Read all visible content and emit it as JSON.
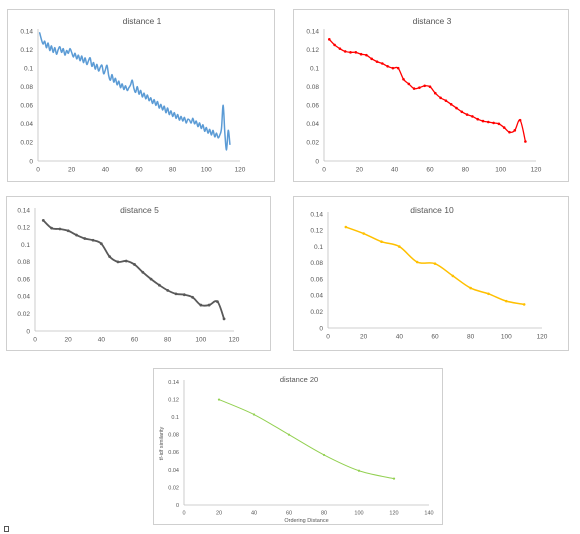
{
  "chart_data": [
    {
      "type": "line",
      "title": "distance 1",
      "xlabel": "",
      "ylabel": "",
      "xlim": [
        0,
        120
      ],
      "ylim": [
        0,
        0.14
      ],
      "x_ticks": [
        "0",
        "20",
        "40",
        "60",
        "80",
        "100",
        "120"
      ],
      "y_ticks": [
        "0",
        "0.02",
        "0.04",
        "0.06",
        "0.08",
        "0.1",
        "0.12",
        "0.14"
      ],
      "grid": false,
      "color": "#5b9bd5",
      "markers": false,
      "series": [
        {
          "x": [
            1,
            2,
            3,
            4,
            5,
            6,
            7,
            8,
            9,
            10,
            11,
            12,
            13,
            14,
            15,
            16,
            17,
            18,
            19,
            20,
            21,
            22,
            23,
            24,
            25,
            26,
            27,
            28,
            29,
            30,
            31,
            32,
            33,
            34,
            35,
            36,
            37,
            38,
            39,
            40,
            41,
            42,
            43,
            44,
            45,
            46,
            47,
            48,
            49,
            50,
            51,
            52,
            53,
            54,
            55,
            56,
            57,
            58,
            59,
            60,
            61,
            62,
            63,
            64,
            65,
            66,
            67,
            68,
            69,
            70,
            71,
            72,
            73,
            74,
            75,
            76,
            77,
            78,
            79,
            80,
            81,
            82,
            83,
            84,
            85,
            86,
            87,
            88,
            89,
            90,
            91,
            92,
            93,
            94,
            95,
            96,
            97,
            98,
            99,
            100,
            101,
            102,
            103,
            104,
            105,
            106,
            107,
            108,
            109,
            110,
            111,
            112,
            113,
            114
          ],
          "y": [
            0.138,
            0.131,
            0.126,
            0.129,
            0.122,
            0.127,
            0.119,
            0.124,
            0.117,
            0.122,
            0.115,
            0.12,
            0.123,
            0.117,
            0.121,
            0.114,
            0.119,
            0.116,
            0.121,
            0.117,
            0.112,
            0.116,
            0.11,
            0.114,
            0.108,
            0.113,
            0.106,
            0.111,
            0.104,
            0.108,
            0.111,
            0.102,
            0.106,
            0.099,
            0.104,
            0.097,
            0.101,
            0.103,
            0.094,
            0.098,
            0.103,
            0.092,
            0.087,
            0.093,
            0.085,
            0.089,
            0.082,
            0.086,
            0.079,
            0.083,
            0.077,
            0.081,
            0.076,
            0.079,
            0.082,
            0.087,
            0.078,
            0.074,
            0.08,
            0.072,
            0.076,
            0.069,
            0.073,
            0.067,
            0.071,
            0.065,
            0.068,
            0.062,
            0.066,
            0.06,
            0.064,
            0.057,
            0.061,
            0.055,
            0.059,
            0.052,
            0.057,
            0.05,
            0.054,
            0.048,
            0.052,
            0.046,
            0.05,
            0.044,
            0.048,
            0.043,
            0.047,
            0.041,
            0.045,
            0.044,
            0.041,
            0.046,
            0.04,
            0.043,
            0.037,
            0.041,
            0.035,
            0.039,
            0.032,
            0.036,
            0.03,
            0.034,
            0.028,
            0.033,
            0.026,
            0.03,
            0.025,
            0.028,
            0.035,
            0.06,
            0.03,
            0.012,
            0.033,
            0.018
          ]
        }
      ]
    },
    {
      "type": "line",
      "title": "distance 3",
      "xlabel": "",
      "ylabel": "",
      "xlim": [
        0,
        120
      ],
      "ylim": [
        0,
        0.14
      ],
      "x_ticks": [
        "0",
        "20",
        "40",
        "60",
        "80",
        "100",
        "120"
      ],
      "y_ticks": [
        "0",
        "0.02",
        "0.04",
        "0.06",
        "0.08",
        "0.1",
        "0.12",
        "0.14"
      ],
      "grid": false,
      "color": "#ff0000",
      "markers": true,
      "series": [
        {
          "x": [
            3,
            6,
            9,
            12,
            15,
            18,
            21,
            24,
            27,
            30,
            33,
            36,
            39,
            42,
            45,
            48,
            51,
            54,
            57,
            60,
            63,
            66,
            69,
            72,
            75,
            78,
            81,
            84,
            87,
            90,
            93,
            96,
            99,
            102,
            105,
            108,
            111,
            114
          ],
          "y": [
            0.131,
            0.125,
            0.121,
            0.118,
            0.117,
            0.117,
            0.115,
            0.114,
            0.11,
            0.107,
            0.105,
            0.102,
            0.1,
            0.1,
            0.088,
            0.083,
            0.078,
            0.079,
            0.081,
            0.08,
            0.073,
            0.068,
            0.065,
            0.061,
            0.057,
            0.053,
            0.05,
            0.048,
            0.045,
            0.043,
            0.042,
            0.041,
            0.04,
            0.036,
            0.031,
            0.033,
            0.044,
            0.021
          ]
        }
      ]
    },
    {
      "type": "line",
      "title": "distance 5",
      "xlabel": "",
      "ylabel": "",
      "xlim": [
        0,
        120
      ],
      "ylim": [
        0,
        0.14
      ],
      "x_ticks": [
        "0",
        "20",
        "40",
        "60",
        "80",
        "100",
        "120"
      ],
      "y_ticks": [
        "0",
        "0.02",
        "0.04",
        "0.06",
        "0.08",
        "0.1",
        "0.12",
        "0.14"
      ],
      "grid": false,
      "color": "#595959",
      "markers": true,
      "series": [
        {
          "x": [
            5,
            10,
            15,
            20,
            25,
            30,
            35,
            40,
            45,
            50,
            55,
            60,
            65,
            70,
            75,
            80,
            85,
            90,
            95,
            100,
            105,
            110,
            114
          ],
          "y": [
            0.128,
            0.119,
            0.118,
            0.116,
            0.111,
            0.107,
            0.105,
            0.101,
            0.086,
            0.08,
            0.081,
            0.077,
            0.068,
            0.06,
            0.053,
            0.047,
            0.043,
            0.042,
            0.039,
            0.03,
            0.03,
            0.034,
            0.014
          ]
        }
      ]
    },
    {
      "type": "line",
      "title": "distance 10",
      "xlabel": "",
      "ylabel": "",
      "xlim": [
        0,
        120
      ],
      "ylim": [
        0,
        0.14
      ],
      "x_ticks": [
        "0",
        "20",
        "40",
        "60",
        "80",
        "100",
        "120"
      ],
      "y_ticks": [
        "0",
        "0.02",
        "0.04",
        "0.06",
        "0.08",
        "0.1",
        "0.12",
        "0.14"
      ],
      "grid": false,
      "color": "#ffc000",
      "markers": true,
      "series": [
        {
          "x": [
            10,
            20,
            30,
            40,
            50,
            60,
            70,
            80,
            90,
            100,
            110
          ],
          "y": [
            0.124,
            0.116,
            0.106,
            0.1,
            0.081,
            0.079,
            0.064,
            0.049,
            0.042,
            0.033,
            0.029
          ]
        }
      ]
    },
    {
      "type": "line",
      "title": "distance 20",
      "xlabel": "Ordering Distance",
      "ylabel": "tf-idf similarity",
      "xlim": [
        0,
        140
      ],
      "ylim": [
        0,
        0.14
      ],
      "x_ticks": [
        "0",
        "20",
        "40",
        "60",
        "80",
        "100",
        "120",
        "140"
      ],
      "y_ticks": [
        "0",
        "0.02",
        "0.04",
        "0.06",
        "0.08",
        "0.1",
        "0.12",
        "0.14"
      ],
      "grid": false,
      "color": "#92d050",
      "markers": true,
      "series": [
        {
          "x": [
            20,
            40,
            60,
            80,
            100,
            120
          ],
          "y": [
            0.12,
            0.103,
            0.08,
            0.057,
            0.039,
            0.03
          ]
        }
      ]
    }
  ]
}
